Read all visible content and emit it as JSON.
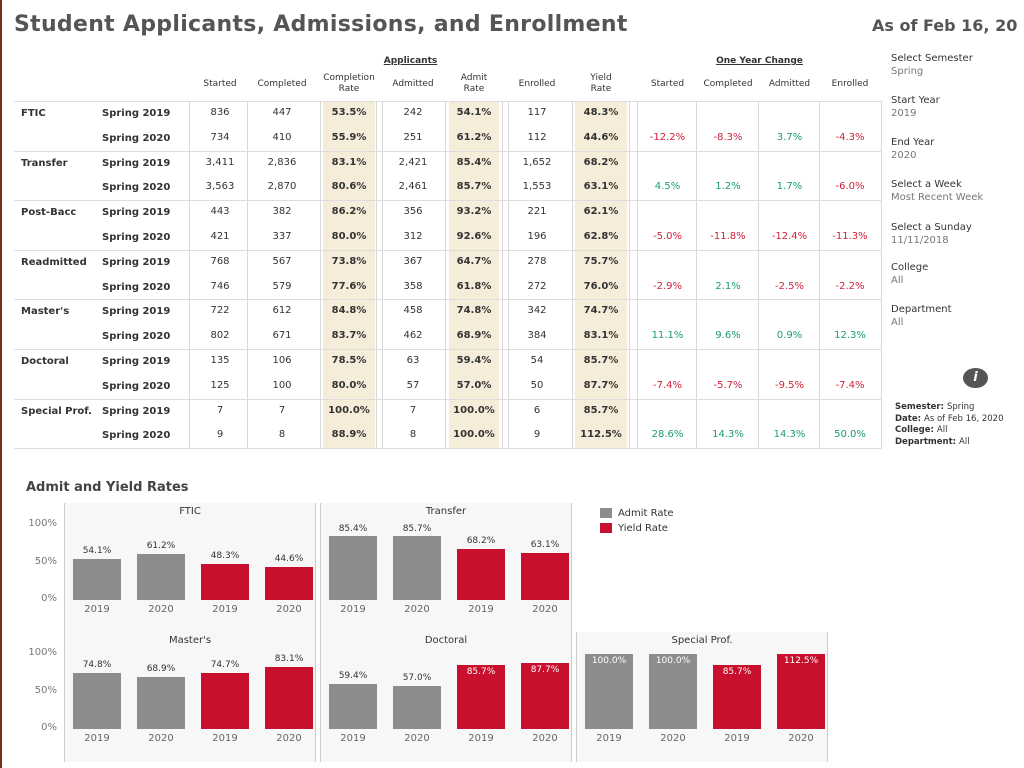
{
  "header": {
    "title": "Student Applicants, Admissions, and Enrollment",
    "as_of": "As of Feb 16, 20"
  },
  "table": {
    "group_applicants": "Applicants",
    "group_change": "One Year Change",
    "columns": [
      "Started",
      "Completed",
      "Completion\nRate",
      "Admitted",
      "Admit\nRate",
      "Enrolled",
      "Yield\nRate"
    ],
    "change_columns": [
      "Started",
      "Completed",
      "Admitted",
      "Enrolled"
    ],
    "rows": [
      {
        "type": "FTIC",
        "years": [
          {
            "sem": "Spring 2019",
            "v": [
              "836",
              "447",
              "53.5%",
              "242",
              "54.1%",
              "117",
              "48.3%"
            ]
          },
          {
            "sem": "Spring 2020",
            "v": [
              "734",
              "410",
              "55.9%",
              "251",
              "61.2%",
              "112",
              "44.6%"
            ]
          }
        ],
        "change": [
          "-12.2%",
          "-8.3%",
          "3.7%",
          "-4.3%"
        ]
      },
      {
        "type": "Transfer",
        "years": [
          {
            "sem": "Spring 2019",
            "v": [
              "3,411",
              "2,836",
              "83.1%",
              "2,421",
              "85.4%",
              "1,652",
              "68.2%"
            ]
          },
          {
            "sem": "Spring 2020",
            "v": [
              "3,563",
              "2,870",
              "80.6%",
              "2,461",
              "85.7%",
              "1,553",
              "63.1%"
            ]
          }
        ],
        "change": [
          "4.5%",
          "1.2%",
          "1.7%",
          "-6.0%"
        ]
      },
      {
        "type": "Post-Bacc",
        "years": [
          {
            "sem": "Spring 2019",
            "v": [
              "443",
              "382",
              "86.2%",
              "356",
              "93.2%",
              "221",
              "62.1%"
            ]
          },
          {
            "sem": "Spring 2020",
            "v": [
              "421",
              "337",
              "80.0%",
              "312",
              "92.6%",
              "196",
              "62.8%"
            ]
          }
        ],
        "change": [
          "-5.0%",
          "-11.8%",
          "-12.4%",
          "-11.3%"
        ]
      },
      {
        "type": "Readmitted",
        "years": [
          {
            "sem": "Spring 2019",
            "v": [
              "768",
              "567",
              "73.8%",
              "367",
              "64.7%",
              "278",
              "75.7%"
            ]
          },
          {
            "sem": "Spring 2020",
            "v": [
              "746",
              "579",
              "77.6%",
              "358",
              "61.8%",
              "272",
              "76.0%"
            ]
          }
        ],
        "change": [
          "-2.9%",
          "2.1%",
          "-2.5%",
          "-2.2%"
        ]
      },
      {
        "type": "Master's",
        "years": [
          {
            "sem": "Spring 2019",
            "v": [
              "722",
              "612",
              "84.8%",
              "458",
              "74.8%",
              "342",
              "74.7%"
            ]
          },
          {
            "sem": "Spring 2020",
            "v": [
              "802",
              "671",
              "83.7%",
              "462",
              "68.9%",
              "384",
              "83.1%"
            ]
          }
        ],
        "change": [
          "11.1%",
          "9.6%",
          "0.9%",
          "12.3%"
        ]
      },
      {
        "type": "Doctoral",
        "years": [
          {
            "sem": "Spring 2019",
            "v": [
              "135",
              "106",
              "78.5%",
              "63",
              "59.4%",
              "54",
              "85.7%"
            ]
          },
          {
            "sem": "Spring 2020",
            "v": [
              "125",
              "100",
              "80.0%",
              "57",
              "57.0%",
              "50",
              "87.7%"
            ]
          }
        ],
        "change": [
          "-7.4%",
          "-5.7%",
          "-9.5%",
          "-7.4%"
        ]
      },
      {
        "type": "Special Prof.",
        "years": [
          {
            "sem": "Spring 2019",
            "v": [
              "7",
              "7",
              "100.0%",
              "7",
              "100.0%",
              "6",
              "85.7%"
            ]
          },
          {
            "sem": "Spring 2020",
            "v": [
              "9",
              "8",
              "88.9%",
              "8",
              "100.0%",
              "9",
              "112.5%"
            ]
          }
        ],
        "change": [
          "28.6%",
          "14.3%",
          "14.3%",
          "50.0%"
        ]
      }
    ]
  },
  "filters": [
    {
      "label": "Select Semester",
      "value": "Spring"
    },
    {
      "label": "Start Year",
      "value": "2019"
    },
    {
      "label": "End Year",
      "value": "2020"
    },
    {
      "label": "Select a Week",
      "value": "Most Recent Week"
    },
    {
      "label": "Select a Sunday",
      "value": "11/11/2018"
    },
    {
      "label": "College",
      "value": "All"
    },
    {
      "label": "Department",
      "value": "All"
    }
  ],
  "info_icon": "i",
  "summary": [
    {
      "k": "Semester:",
      "v": "Spring"
    },
    {
      "k": "Date:",
      "v": "As of Feb 16, 2020"
    },
    {
      "k": "College:",
      "v": "All"
    },
    {
      "k": "Department:",
      "v": "All"
    }
  ],
  "colors": {
    "admit": "#8c8c8c",
    "yield": "#c8102e",
    "positive": "#1a9e68",
    "negative": "#d0213a",
    "highlight": "#f6ecda"
  },
  "chart_data": {
    "type": "bar",
    "title": "Admit and Yield Rates",
    "legend": [
      "Admit Rate",
      "Yield Rate"
    ],
    "yticks": [
      "100%",
      "50%",
      "0%"
    ],
    "ylim": [
      0,
      100
    ],
    "categories": [
      "2019",
      "2020",
      "2019",
      "2020"
    ],
    "panels": [
      {
        "name": "FTIC",
        "values": [
          54.1,
          61.2,
          48.3,
          44.6
        ],
        "labels": [
          "54.1%",
          "61.2%",
          "48.3%",
          "44.6%"
        ]
      },
      {
        "name": "Transfer",
        "values": [
          85.4,
          85.7,
          68.2,
          63.1
        ],
        "labels": [
          "85.4%",
          "85.7%",
          "68.2%",
          "63.1%"
        ]
      },
      {
        "name": "Master's",
        "values": [
          74.8,
          68.9,
          74.7,
          83.1
        ],
        "labels": [
          "74.8%",
          "68.9%",
          "74.7%",
          "83.1%"
        ]
      },
      {
        "name": "Doctoral",
        "values": [
          59.4,
          57.0,
          85.7,
          87.7
        ],
        "labels": [
          "59.4%",
          "57.0%",
          "85.7%",
          "87.7%"
        ]
      },
      {
        "name": "Special Prof.",
        "values": [
          100.0,
          100.0,
          85.7,
          112.5
        ],
        "labels": [
          "100.0%",
          "100.0%",
          "85.7%",
          "112.5%"
        ]
      }
    ]
  }
}
